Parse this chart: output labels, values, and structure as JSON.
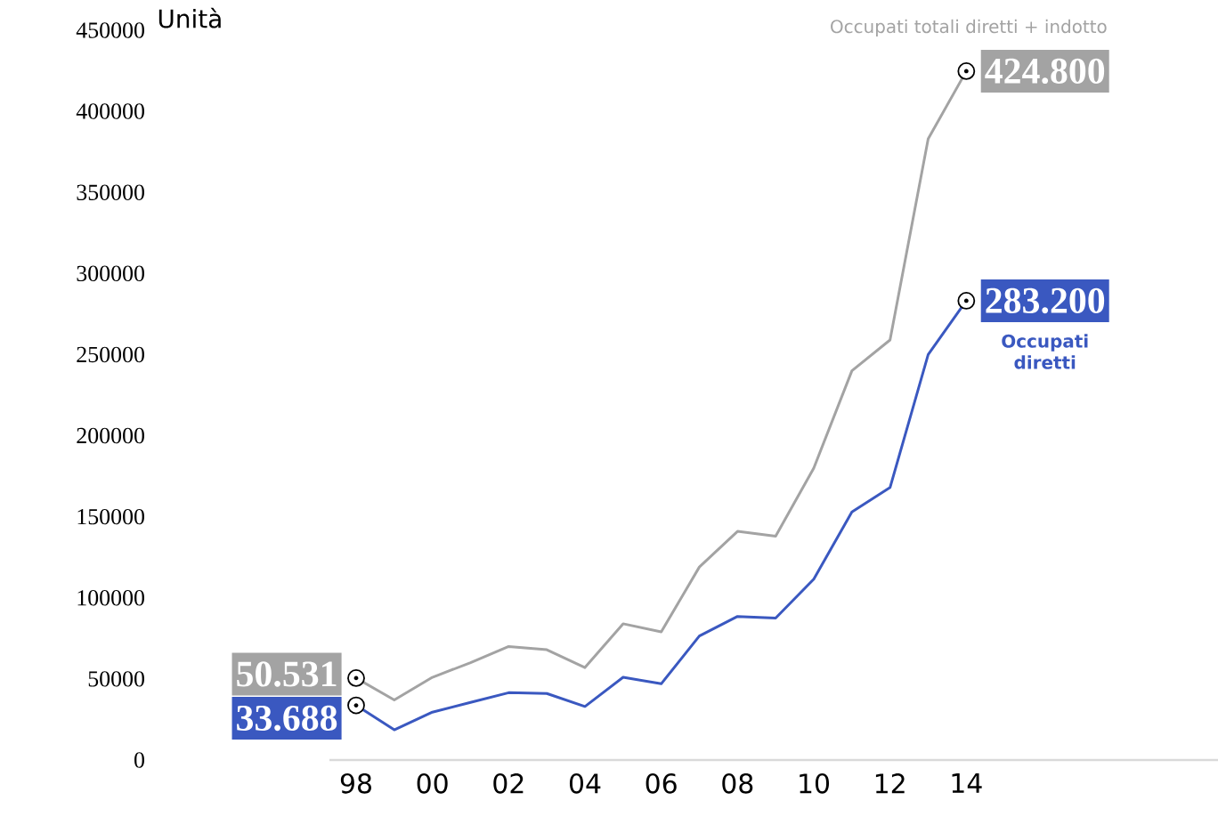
{
  "chart_data": {
    "type": "line",
    "ylabel": "Unità",
    "x": [
      1998,
      1999,
      2000,
      2001,
      2002,
      2003,
      2004,
      2005,
      2006,
      2007,
      2008,
      2009,
      2010,
      2011,
      2012,
      2013,
      2014
    ],
    "series": [
      {
        "name": "Occupati totali diretti + indotto",
        "color": "#a3a3a3",
        "values": [
          50531,
          37000,
          51000,
          60000,
          70000,
          68000,
          57000,
          84000,
          79000,
          119000,
          141000,
          138000,
          180000,
          240000,
          259000,
          383000,
          424800
        ],
        "value_labels": [
          "50.531",
          null,
          null,
          null,
          null,
          null,
          null,
          null,
          null,
          null,
          null,
          null,
          null,
          null,
          null,
          null,
          "424.800"
        ]
      },
      {
        "name": "Occupati diretti",
        "color": "#3a58c0",
        "values": [
          33688,
          18600,
          29500,
          35500,
          41500,
          41000,
          33000,
          51000,
          47000,
          76500,
          88500,
          87500,
          111500,
          153000,
          168000,
          250000,
          283200
        ],
        "value_labels": [
          "33.688",
          null,
          null,
          null,
          null,
          null,
          null,
          null,
          null,
          null,
          null,
          null,
          null,
          null,
          null,
          null,
          "283.200"
        ]
      }
    ],
    "xlim": [
      1997.3,
      2020.6
    ],
    "xticks": [
      {
        "value": 1998,
        "label": "98"
      },
      {
        "value": 2000,
        "label": "00"
      },
      {
        "value": 2002,
        "label": "02"
      },
      {
        "value": 2004,
        "label": "04"
      },
      {
        "value": 2006,
        "label": "06"
      },
      {
        "value": 2008,
        "label": "08"
      },
      {
        "value": 2010,
        "label": "10"
      },
      {
        "value": 2012,
        "label": "12"
      },
      {
        "value": 2014,
        "label": "14"
      }
    ],
    "ylim": [
      0,
      450000
    ],
    "yticks": [
      0,
      50000,
      100000,
      150000,
      200000,
      250000,
      300000,
      350000,
      400000,
      450000
    ],
    "grid": false,
    "legend": false
  }
}
